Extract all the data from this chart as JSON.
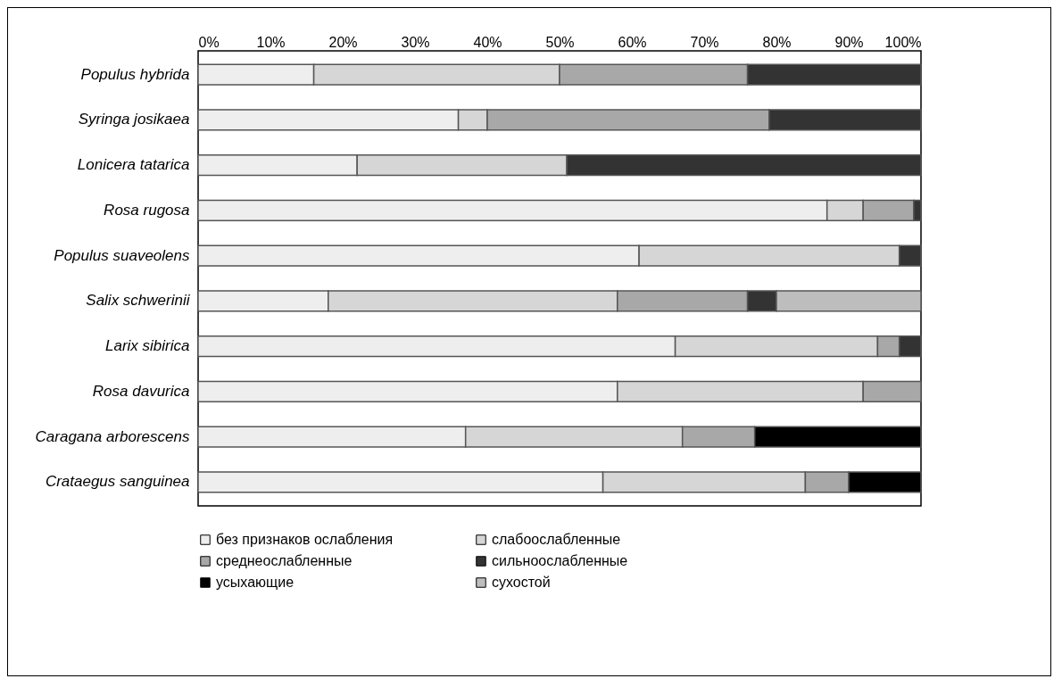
{
  "chart_data": {
    "type": "bar",
    "orientation": "horizontal",
    "stacked": true,
    "categories": [
      "Populus hybrida",
      "Syringa josikaea",
      "Lonicera tatarica",
      "Rosa rugosa",
      "Populus suaveolens",
      "Salix schwerinii",
      "Larix sibirica",
      "Rosa davurica",
      "Caragana arborescens",
      "Crataegus sanguinea"
    ],
    "series": [
      {
        "name": "без признаков ослабления",
        "color": "#eeeeee",
        "values": [
          16,
          36,
          22,
          87,
          61,
          18,
          66,
          58,
          37,
          56
        ]
      },
      {
        "name": "слабоослабленные",
        "color": "#d6d6d6",
        "values": [
          34,
          4,
          29,
          5,
          36,
          40,
          28,
          34,
          30,
          28
        ]
      },
      {
        "name": "среднеослабленные",
        "color": "#a8a8a8",
        "values": [
          26,
          39,
          null,
          7,
          null,
          18,
          3,
          8,
          10,
          6
        ]
      },
      {
        "name": "сильноослабленные",
        "color": "#333333",
        "values": [
          24,
          21,
          49,
          1,
          3,
          4,
          3,
          null,
          null,
          null
        ]
      },
      {
        "name": "усыхающие",
        "color": "#000000",
        "values": [
          null,
          null,
          null,
          null,
          null,
          null,
          null,
          null,
          23,
          10
        ]
      },
      {
        "name": "сухостой",
        "color": "#bdbdbd",
        "values": [
          null,
          null,
          null,
          null,
          null,
          20,
          null,
          null,
          null,
          null
        ]
      }
    ],
    "xlim": [
      0,
      100
    ],
    "xticks": [
      {
        "value": 0,
        "label": "0%"
      },
      {
        "value": 10,
        "label": "10%"
      },
      {
        "value": 20,
        "label": "20%"
      },
      {
        "value": 30,
        "label": "30%"
      },
      {
        "value": 40,
        "label": "40%"
      },
      {
        "value": 50,
        "label": "50%"
      },
      {
        "value": 60,
        "label": "60%"
      },
      {
        "value": 70,
        "label": "70%"
      },
      {
        "value": 80,
        "label": "80%"
      },
      {
        "value": 90,
        "label": "90%"
      },
      {
        "value": 100,
        "label": "100%"
      }
    ],
    "grid": false,
    "legend": "bottom"
  }
}
